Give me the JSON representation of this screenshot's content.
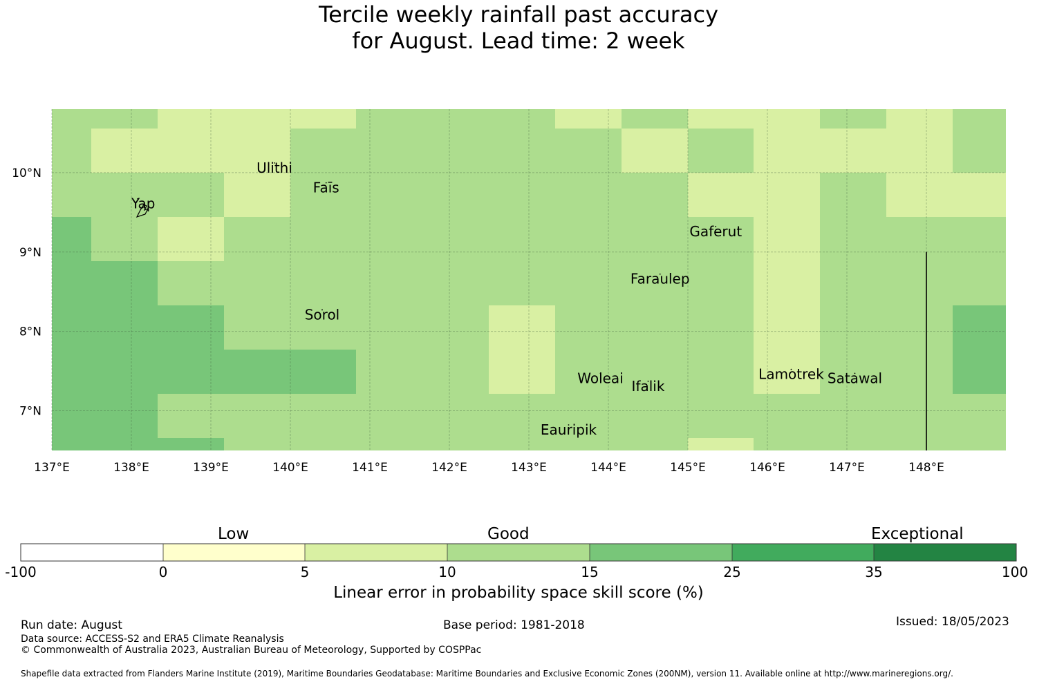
{
  "title": {
    "line1": "Tercile weekly rainfall past accuracy",
    "line2": "for August. Lead time: 2 week"
  },
  "map": {
    "lon_ticks": [
      "137°E",
      "138°E",
      "139°E",
      "140°E",
      "141°E",
      "142°E",
      "143°E",
      "144°E",
      "145°E",
      "146°E",
      "147°E",
      "148°E"
    ],
    "lat_ticks": [
      "10°N",
      "9°N",
      "8°N",
      "7°N"
    ],
    "lon_range": [
      137,
      149
    ],
    "lat_range": [
      6.5,
      10.8
    ],
    "category_colors": {
      "c5_10": "#d9f0a3",
      "c10_15": "#addd8e",
      "c15_25": "#78c679"
    },
    "places": [
      {
        "name": "Ulithi",
        "lon": 139.8,
        "lat": 10.0
      },
      {
        "name": "Faīs",
        "lon": 140.45,
        "lat": 9.75
      },
      {
        "name": "Yap",
        "lon": 138.15,
        "lat": 9.55
      },
      {
        "name": "Gaferut",
        "lon": 145.35,
        "lat": 9.2
      },
      {
        "name": "Faraulep",
        "lon": 144.65,
        "lat": 8.6
      },
      {
        "name": "Sorol",
        "lon": 140.4,
        "lat": 8.15
      },
      {
        "name": "Woleai",
        "lon": 143.9,
        "lat": 7.35
      },
      {
        "name": "Ifalik",
        "lon": 144.5,
        "lat": 7.25
      },
      {
        "name": "Lamotrek",
        "lon": 146.3,
        "lat": 7.4
      },
      {
        "name": "Satawal",
        "lon": 147.1,
        "lat": 7.35
      },
      {
        "name": "Eauripik",
        "lon": 143.5,
        "lat": 6.7
      }
    ]
  },
  "colorbar": {
    "categories": [
      "Low",
      "Good",
      "Exceptional"
    ],
    "ticks": [
      "-100",
      "0",
      "5",
      "10",
      "15",
      "25",
      "35",
      "100"
    ],
    "colors": [
      "#ffffff",
      "#ffffcc",
      "#d9f0a3",
      "#addd8e",
      "#78c679",
      "#41ab5d",
      "#238443"
    ],
    "title": "Linear error in probability space skill score (%)"
  },
  "footer": {
    "run_date": "Run date: August",
    "base_period": "Base period: 1981-2018",
    "issued": "Issued: 18/05/2023",
    "data_source": "Data source: ACCESS-S2 and ERA5 Climate Reanalysis",
    "copyright": "© Commonwealth of Australia 2023, Australian Bureau of Meteorology, Supported by COSPPac",
    "shapefile": "Shapefile data extracted from Flanders Marine Institute (2019), Maritime Boundaries Geodatabase: Maritime Boundaries and Exclusive Economic Zones (200NM), version 11. Available online at http://www.marineregions.org/."
  }
}
